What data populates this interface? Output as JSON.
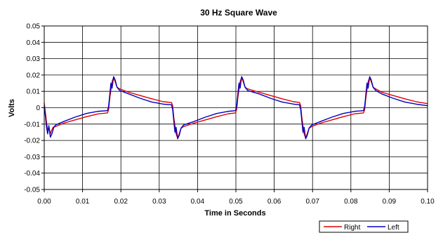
{
  "chart_data": {
    "type": "line",
    "title": "30 Hz Square Wave",
    "xlabel": "Time in Seconds",
    "ylabel": "Volts",
    "xlim": [
      0,
      0.1
    ],
    "ylim": [
      -0.05,
      0.05
    ],
    "x_ticks": [
      0,
      0.01,
      0.02,
      0.03,
      0.04,
      0.05,
      0.06,
      0.07,
      0.08,
      0.09,
      0.1
    ],
    "x_tick_labels": [
      "0.00",
      "0.01",
      "0.02",
      "0.03",
      "0.04",
      "0.05",
      "0.06",
      "0.07",
      "0.08",
      "0.09",
      "0.10"
    ],
    "y_ticks": [
      -0.05,
      -0.04,
      -0.03,
      -0.02,
      -0.01,
      0,
      0.01,
      0.02,
      0.03,
      0.04,
      0.05
    ],
    "y_tick_labels": [
      "-0.05",
      "-0.04",
      "-0.03",
      "-0.02",
      "-0.01",
      "0",
      "0.01",
      "0.02",
      "0.03",
      "0.04",
      "0.05"
    ],
    "grid": true,
    "legend_position": "bottom-right",
    "series": [
      {
        "name": "Right",
        "color": "#e00000",
        "points": [
          [
            0,
            0.003
          ],
          [
            0.0003,
            -0.003
          ],
          [
            0.0006,
            -0.009
          ],
          [
            0.0009,
            -0.014
          ],
          [
            0.0012,
            -0.012
          ],
          [
            0.0016,
            -0.016
          ],
          [
            0.0019,
            -0.014
          ],
          [
            0.0023,
            -0.012
          ],
          [
            0.003,
            -0.0115
          ],
          [
            0.005,
            -0.0095
          ],
          [
            0.008,
            -0.0075
          ],
          [
            0.011,
            -0.0055
          ],
          [
            0.014,
            -0.0038
          ],
          [
            0.0165,
            -0.0032
          ],
          [
            0.0168,
            -0.001
          ],
          [
            0.0171,
            0.006
          ],
          [
            0.0174,
            0.011
          ],
          [
            0.0177,
            0.016
          ],
          [
            0.0181,
            0.0185
          ],
          [
            0.0185,
            0.016
          ],
          [
            0.019,
            0.0125
          ],
          [
            0.0197,
            0.0115
          ],
          [
            0.022,
            0.0095
          ],
          [
            0.025,
            0.0075
          ],
          [
            0.028,
            0.0055
          ],
          [
            0.031,
            0.0037
          ],
          [
            0.0332,
            0.0032
          ],
          [
            0.0335,
            0.0012
          ],
          [
            0.0338,
            -0.006
          ],
          [
            0.0341,
            -0.011
          ],
          [
            0.0344,
            -0.016
          ],
          [
            0.0348,
            -0.0185
          ],
          [
            0.0352,
            -0.016
          ],
          [
            0.0357,
            -0.0125
          ],
          [
            0.0364,
            -0.0115
          ],
          [
            0.039,
            -0.0095
          ],
          [
            0.042,
            -0.0075
          ],
          [
            0.045,
            -0.0055
          ],
          [
            0.048,
            -0.0037
          ],
          [
            0.0499,
            -0.0032
          ],
          [
            0.0502,
            -0.001
          ],
          [
            0.0505,
            0.006
          ],
          [
            0.0508,
            0.011
          ],
          [
            0.0511,
            0.016
          ],
          [
            0.0515,
            0.0185
          ],
          [
            0.0519,
            0.016
          ],
          [
            0.0524,
            0.0125
          ],
          [
            0.0531,
            0.0115
          ],
          [
            0.056,
            0.0095
          ],
          [
            0.059,
            0.0075
          ],
          [
            0.062,
            0.0055
          ],
          [
            0.065,
            0.0037
          ],
          [
            0.0666,
            0.0032
          ],
          [
            0.0669,
            0.0012
          ],
          [
            0.0672,
            -0.006
          ],
          [
            0.0675,
            -0.011
          ],
          [
            0.0678,
            -0.016
          ],
          [
            0.0682,
            -0.0185
          ],
          [
            0.0686,
            -0.016
          ],
          [
            0.0691,
            -0.0125
          ],
          [
            0.0698,
            -0.0115
          ],
          [
            0.072,
            -0.0095
          ],
          [
            0.075,
            -0.0075
          ],
          [
            0.078,
            -0.0055
          ],
          [
            0.081,
            -0.0037
          ],
          [
            0.0833,
            -0.0032
          ],
          [
            0.0836,
            -0.001
          ],
          [
            0.0839,
            0.006
          ],
          [
            0.0842,
            0.011
          ],
          [
            0.0845,
            0.016
          ],
          [
            0.0849,
            0.0185
          ],
          [
            0.0853,
            0.016
          ],
          [
            0.0858,
            0.0125
          ],
          [
            0.0865,
            0.0115
          ],
          [
            0.088,
            0.0095
          ],
          [
            0.091,
            0.0075
          ],
          [
            0.094,
            0.0055
          ],
          [
            0.097,
            0.0037
          ],
          [
            0.1,
            0.0025
          ]
        ]
      },
      {
        "name": "Left",
        "color": "#0000c0",
        "points": [
          [
            0,
            0.001
          ],
          [
            0.0003,
            -0.005
          ],
          [
            0.0006,
            -0.012
          ],
          [
            0.0009,
            -0.016
          ],
          [
            0.0012,
            -0.011
          ],
          [
            0.0016,
            -0.018
          ],
          [
            0.002,
            -0.016
          ],
          [
            0.0025,
            -0.012
          ],
          [
            0.003,
            -0.0105
          ],
          [
            0.005,
            -0.0085
          ],
          [
            0.008,
            -0.0058
          ],
          [
            0.011,
            -0.0035
          ],
          [
            0.014,
            -0.0022
          ],
          [
            0.0165,
            -0.0018
          ],
          [
            0.0168,
            0.001
          ],
          [
            0.0171,
            0.008
          ],
          [
            0.0174,
            0.015
          ],
          [
            0.0177,
            0.012
          ],
          [
            0.0181,
            0.019
          ],
          [
            0.0185,
            0.017
          ],
          [
            0.019,
            0.0125
          ],
          [
            0.0197,
            0.0105
          ],
          [
            0.022,
            0.0085
          ],
          [
            0.025,
            0.0058
          ],
          [
            0.028,
            0.0035
          ],
          [
            0.031,
            0.0022
          ],
          [
            0.0332,
            0.0018
          ],
          [
            0.0335,
            -0.001
          ],
          [
            0.0338,
            -0.008
          ],
          [
            0.0341,
            -0.015
          ],
          [
            0.0344,
            -0.012
          ],
          [
            0.0348,
            -0.019
          ],
          [
            0.0352,
            -0.017
          ],
          [
            0.0357,
            -0.0125
          ],
          [
            0.0364,
            -0.0105
          ],
          [
            0.039,
            -0.0085
          ],
          [
            0.042,
            -0.0058
          ],
          [
            0.045,
            -0.0035
          ],
          [
            0.048,
            -0.0022
          ],
          [
            0.0499,
            -0.0018
          ],
          [
            0.0502,
            0.001
          ],
          [
            0.0505,
            0.008
          ],
          [
            0.0508,
            0.015
          ],
          [
            0.0511,
            0.012
          ],
          [
            0.0515,
            0.019
          ],
          [
            0.0519,
            0.017
          ],
          [
            0.0524,
            0.0125
          ],
          [
            0.0531,
            0.0105
          ],
          [
            0.056,
            0.0085
          ],
          [
            0.059,
            0.0058
          ],
          [
            0.062,
            0.0035
          ],
          [
            0.065,
            0.0022
          ],
          [
            0.0666,
            0.0018
          ],
          [
            0.0669,
            -0.001
          ],
          [
            0.0672,
            -0.008
          ],
          [
            0.0675,
            -0.015
          ],
          [
            0.0678,
            -0.012
          ],
          [
            0.0682,
            -0.019
          ],
          [
            0.0686,
            -0.017
          ],
          [
            0.0691,
            -0.0125
          ],
          [
            0.0698,
            -0.0105
          ],
          [
            0.072,
            -0.0085
          ],
          [
            0.075,
            -0.0058
          ],
          [
            0.078,
            -0.0035
          ],
          [
            0.081,
            -0.0022
          ],
          [
            0.0833,
            -0.0018
          ],
          [
            0.0836,
            0.001
          ],
          [
            0.0839,
            0.008
          ],
          [
            0.0842,
            0.015
          ],
          [
            0.0845,
            0.012
          ],
          [
            0.0849,
            0.019
          ],
          [
            0.0853,
            0.017
          ],
          [
            0.0858,
            0.0125
          ],
          [
            0.0865,
            0.0105
          ],
          [
            0.088,
            0.0085
          ],
          [
            0.091,
            0.0058
          ],
          [
            0.094,
            0.0035
          ],
          [
            0.097,
            0.0022
          ],
          [
            0.1,
            0.0012
          ]
        ]
      }
    ]
  }
}
